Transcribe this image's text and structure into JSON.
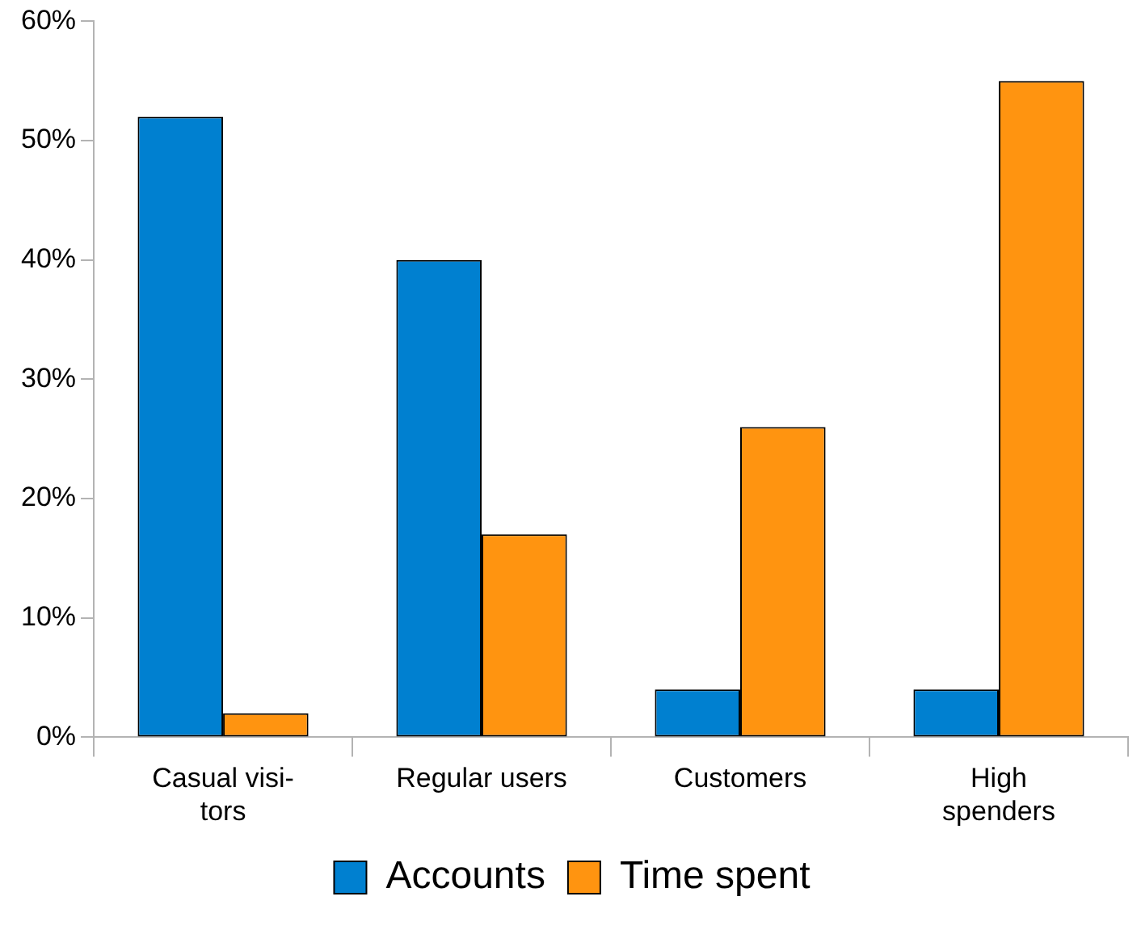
{
  "chart_data": {
    "type": "bar",
    "categories": [
      "Casual visi-\ntors",
      "Regular users",
      "Customers",
      "High\nspenders"
    ],
    "series": [
      {
        "name": "Accounts",
        "color": "#0080d0",
        "values": [
          52,
          40,
          4,
          4
        ]
      },
      {
        "name": "Time spent",
        "color": "#ff9410",
        "values": [
          2,
          17,
          26,
          55
        ]
      }
    ],
    "ylim": [
      0,
      60
    ],
    "yticks": [
      {
        "value": 0,
        "label": "0%"
      },
      {
        "value": 10,
        "label": "10%"
      },
      {
        "value": 20,
        "label": "20%"
      },
      {
        "value": 30,
        "label": "30%"
      },
      {
        "value": 40,
        "label": "40%"
      },
      {
        "value": 50,
        "label": "50%"
      },
      {
        "value": 60,
        "label": "60%"
      }
    ],
    "grid": false,
    "legend": "bottom"
  }
}
